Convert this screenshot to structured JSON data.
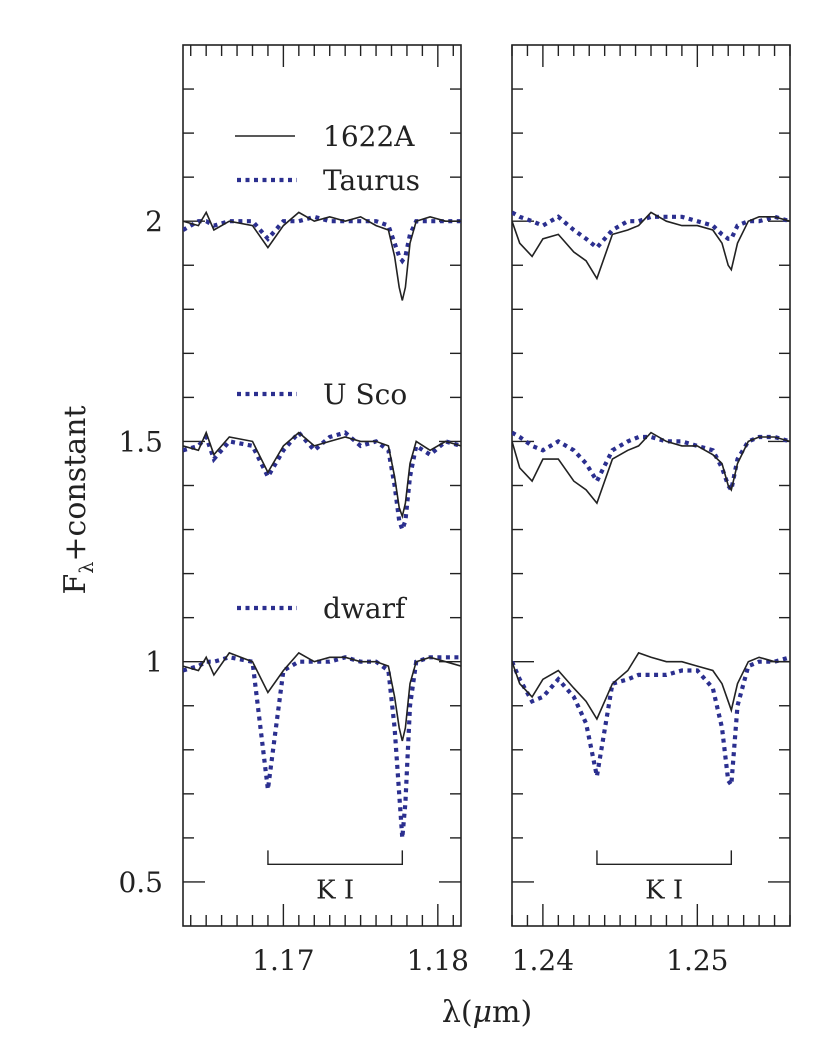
{
  "chart_data": {
    "type": "line",
    "ylabel_main": "F",
    "ylabel_sub": "λ",
    "ylabel_rest": "+constant",
    "xlabel_pre": "λ(",
    "xlabel_mu": "μ",
    "xlabel_post": "m)",
    "ylim": [
      0.4,
      2.4
    ],
    "colors": {
      "object": "#222222",
      "template": "#2b2f8f"
    },
    "legend": {
      "object_label": "1622A",
      "groups": [
        {
          "label": "Taurus",
          "offset": 2.0
        },
        {
          "label": "U Sco",
          "offset": 1.5
        },
        {
          "label": "dwarf",
          "offset": 1.0
        }
      ]
    },
    "panels": [
      {
        "xlim": [
          1.1635,
          1.1815
        ],
        "xticks": [
          "1.17",
          "1.18"
        ],
        "xtick_values": [
          1.17,
          1.18
        ],
        "yticks": [
          "0.5",
          "1",
          "1.5",
          "2"
        ],
        "ytick_values": [
          0.5,
          1.0,
          1.5,
          2.0
        ],
        "line_label": "K I",
        "line_span": [
          1.169,
          1.1777
        ],
        "line_bar_y": 0.54,
        "x": [
          1.1635,
          1.1645,
          1.165,
          1.1655,
          1.1665,
          1.168,
          1.169,
          1.17,
          1.171,
          1.172,
          1.173,
          1.174,
          1.175,
          1.176,
          1.1768,
          1.1772,
          1.1775,
          1.1777,
          1.1779,
          1.1782,
          1.1786,
          1.1795,
          1.1805,
          1.1815
        ],
        "object": [
          [
            0.0,
            -0.01,
            0.02,
            -0.02,
            0.0,
            -0.01,
            -0.06,
            -0.01,
            0.02,
            0.0,
            0.01,
            0.0,
            0.01,
            -0.01,
            -0.02,
            -0.08,
            -0.15,
            -0.18,
            -0.15,
            -0.05,
            0.0,
            0.01,
            0.0,
            0.0
          ],
          [
            -0.01,
            -0.02,
            0.02,
            -0.03,
            0.01,
            0.0,
            -0.07,
            -0.01,
            0.02,
            -0.01,
            0.0,
            0.01,
            0.0,
            0.0,
            -0.01,
            -0.08,
            -0.15,
            -0.17,
            -0.14,
            -0.05,
            0.0,
            -0.02,
            0.0,
            -0.01
          ],
          [
            -0.01,
            -0.02,
            0.01,
            -0.03,
            0.02,
            0.0,
            -0.07,
            -0.02,
            0.02,
            0.0,
            0.01,
            0.01,
            0.0,
            0.0,
            -0.01,
            -0.08,
            -0.15,
            -0.18,
            -0.15,
            -0.05,
            0.0,
            0.01,
            0.0,
            -0.01
          ]
        ],
        "template": [
          [
            -0.02,
            0.0,
            0.0,
            -0.01,
            0.0,
            0.0,
            -0.04,
            0.0,
            0.0,
            0.01,
            0.0,
            0.0,
            0.0,
            0.0,
            -0.01,
            -0.05,
            -0.08,
            -0.09,
            -0.08,
            -0.03,
            0.0,
            0.0,
            0.0,
            0.0
          ],
          [
            -0.02,
            -0.01,
            0.01,
            -0.04,
            0.0,
            -0.01,
            -0.08,
            -0.02,
            0.02,
            -0.02,
            0.01,
            0.02,
            -0.01,
            0.0,
            -0.02,
            -0.1,
            -0.18,
            -0.2,
            -0.18,
            -0.08,
            -0.01,
            -0.03,
            0.0,
            -0.01
          ],
          [
            -0.02,
            -0.01,
            0.0,
            0.0,
            0.01,
            0.0,
            -0.29,
            -0.02,
            0.0,
            0.0,
            0.0,
            0.01,
            0.0,
            0.0,
            -0.02,
            -0.15,
            -0.3,
            -0.4,
            -0.32,
            -0.1,
            0.0,
            0.01,
            0.01,
            0.01
          ]
        ]
      },
      {
        "xlim": [
          1.238,
          1.256
        ],
        "xticks": [
          "1.24",
          "1.25"
        ],
        "xtick_values": [
          1.24,
          1.25
        ],
        "yticks": [],
        "ytick_values": [
          0.5,
          1.0,
          1.5,
          2.0
        ],
        "line_label": "K I",
        "line_span": [
          1.2435,
          1.2522
        ],
        "line_bar_y": 0.54,
        "x": [
          1.238,
          1.2385,
          1.2393,
          1.24,
          1.241,
          1.242,
          1.2428,
          1.2435,
          1.2445,
          1.2455,
          1.2462,
          1.247,
          1.248,
          1.249,
          1.25,
          1.251,
          1.2516,
          1.252,
          1.2522,
          1.2526,
          1.2533,
          1.254,
          1.255,
          1.256
        ],
        "object": [
          [
            0.0,
            -0.05,
            -0.08,
            -0.04,
            -0.03,
            -0.07,
            -0.09,
            -0.13,
            -0.03,
            -0.02,
            -0.01,
            0.02,
            0.0,
            -0.01,
            -0.01,
            -0.02,
            -0.05,
            -0.1,
            -0.11,
            -0.05,
            0.0,
            0.01,
            0.01,
            0.0
          ],
          [
            0.0,
            -0.06,
            -0.09,
            -0.04,
            -0.04,
            -0.09,
            -0.11,
            -0.14,
            -0.04,
            -0.02,
            -0.01,
            0.02,
            0.0,
            -0.01,
            -0.01,
            -0.03,
            -0.05,
            -0.1,
            -0.11,
            -0.05,
            0.0,
            0.01,
            0.01,
            0.0
          ],
          [
            0.0,
            -0.05,
            -0.08,
            -0.04,
            -0.02,
            -0.06,
            -0.09,
            -0.13,
            -0.05,
            -0.02,
            0.02,
            0.01,
            0.0,
            0.0,
            -0.01,
            -0.02,
            -0.05,
            -0.09,
            -0.11,
            -0.05,
            0.0,
            0.01,
            0.0,
            0.0
          ]
        ],
        "template": [
          [
            0.02,
            0.01,
            0.0,
            -0.01,
            0.01,
            -0.02,
            -0.04,
            -0.06,
            -0.02,
            0.0,
            0.0,
            0.01,
            0.01,
            0.01,
            0.0,
            -0.01,
            -0.03,
            -0.04,
            -0.04,
            -0.01,
            0.0,
            0.0,
            0.01,
            0.0
          ],
          [
            0.02,
            0.01,
            -0.01,
            -0.02,
            0.0,
            -0.02,
            -0.05,
            -0.09,
            -0.02,
            0.0,
            0.01,
            0.01,
            0.0,
            0.0,
            -0.01,
            -0.02,
            -0.06,
            -0.1,
            -0.11,
            -0.04,
            0.0,
            0.01,
            0.01,
            0.0
          ],
          [
            0.0,
            -0.04,
            -0.09,
            -0.08,
            -0.04,
            -0.08,
            -0.14,
            -0.26,
            -0.05,
            -0.04,
            -0.03,
            -0.03,
            -0.03,
            -0.02,
            -0.02,
            -0.06,
            -0.15,
            -0.27,
            -0.28,
            -0.1,
            -0.01,
            0.0,
            0.0,
            0.01
          ]
        ]
      }
    ]
  }
}
